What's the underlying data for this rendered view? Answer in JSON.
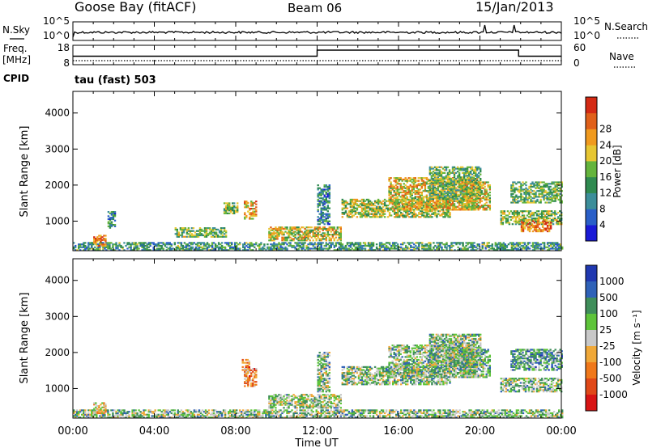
{
  "header": {
    "station": "Goose Bay (fitACF)",
    "beam": "Beam 06",
    "date": "15/Jan/2013"
  },
  "top_panel": {
    "nsky_label": "N.Sky",
    "nsearch_label": "N.Search",
    "left_ticks": [
      "10^5",
      "10^0"
    ],
    "right_ticks": [
      "10^5",
      "10^0"
    ]
  },
  "freq_panel": {
    "freq_label": "Freq.",
    "freq_unit": "[MHz]",
    "nave_label": "Nave",
    "left_ticks": [
      "18",
      "8"
    ],
    "right_ticks": [
      "60",
      "0"
    ],
    "cpid_label": "CPID",
    "cpid_value": "tau (fast) 503"
  },
  "chart_data": [
    {
      "type": "heatmap",
      "panel": "power",
      "ylabel": "Slant Range [km]",
      "xlabel": "",
      "yticks": [
        "1000",
        "2000",
        "3000",
        "4000"
      ],
      "ylim": [
        180,
        4600
      ],
      "xlim": [
        0,
        24
      ],
      "colorbar": {
        "label": "Power [dB]",
        "ticks": [
          "4",
          "8",
          "12",
          "16",
          "20",
          "24",
          "28"
        ],
        "colors": [
          "#1a1ad6",
          "#2a5fc8",
          "#3c8e9a",
          "#2f8a50",
          "#64b43c",
          "#e7c632",
          "#f09a1e",
          "#e0601a",
          "#d42a14"
        ]
      },
      "regions": [
        {
          "t0": 0.0,
          "t1": 24.0,
          "r0": 180,
          "r1": 420,
          "level": 0.35
        },
        {
          "t0": 1.0,
          "t1": 1.6,
          "r0": 300,
          "r1": 600,
          "level": 0.8
        },
        {
          "t0": 1.7,
          "t1": 2.1,
          "r0": 800,
          "r1": 1250,
          "level": 0.3
        },
        {
          "t0": 5.0,
          "t1": 7.5,
          "r0": 550,
          "r1": 800,
          "level": 0.45
        },
        {
          "t0": 7.4,
          "t1": 8.1,
          "r0": 1200,
          "r1": 1500,
          "level": 0.5
        },
        {
          "t0": 8.4,
          "t1": 9.0,
          "r0": 1050,
          "r1": 1550,
          "level": 0.7
        },
        {
          "t0": 9.6,
          "t1": 13.2,
          "r0": 450,
          "r1": 850,
          "level": 0.6
        },
        {
          "t0": 12.0,
          "t1": 12.6,
          "r0": 900,
          "r1": 2000,
          "level": 0.3
        },
        {
          "t0": 13.2,
          "t1": 18.5,
          "r0": 1100,
          "r1": 1600,
          "level": 0.55
        },
        {
          "t0": 15.5,
          "t1": 19.8,
          "r0": 1300,
          "r1": 2200,
          "level": 0.65
        },
        {
          "t0": 17.5,
          "t1": 20.0,
          "r0": 1600,
          "r1": 2500,
          "level": 0.45
        },
        {
          "t0": 19.0,
          "t1": 20.5,
          "r0": 1300,
          "r1": 2100,
          "level": 0.6
        },
        {
          "t0": 21.0,
          "t1": 24.0,
          "r0": 900,
          "r1": 1300,
          "level": 0.5
        },
        {
          "t0": 22.0,
          "t1": 23.5,
          "r0": 700,
          "r1": 1000,
          "level": 0.8
        },
        {
          "t0": 21.5,
          "t1": 24.0,
          "r0": 1500,
          "r1": 2100,
          "level": 0.45
        }
      ]
    },
    {
      "type": "heatmap",
      "panel": "velocity",
      "ylabel": "Slant Range [km]",
      "xlabel": "Time UT",
      "yticks": [
        "1000",
        "2000",
        "3000",
        "4000"
      ],
      "xticks": [
        "00:00",
        "04:00",
        "08:00",
        "12:00",
        "16:00",
        "20:00",
        "00:00"
      ],
      "ylim": [
        180,
        4600
      ],
      "xlim": [
        0,
        24
      ],
      "colorbar": {
        "label": "Velocity [m s⁻¹]",
        "ticks": [
          "1000",
          "500",
          "100",
          "25",
          "-25",
          "-100",
          "-500",
          "-1000"
        ],
        "colors": [
          "#2038b0",
          "#2f62b8",
          "#3f8e5a",
          "#5ec43a",
          "#c8c8c8",
          "#f0a838",
          "#f0781a",
          "#e04818",
          "#d81414"
        ]
      },
      "regions": [
        {
          "t0": 0.0,
          "t1": 24.0,
          "r0": 180,
          "r1": 420,
          "level": 0.4
        },
        {
          "t0": 1.0,
          "t1": 1.6,
          "r0": 300,
          "r1": 600,
          "level": 0.55
        },
        {
          "t0": 8.4,
          "t1": 9.0,
          "r0": 1050,
          "r1": 1550,
          "level": 0.7
        },
        {
          "t0": 8.3,
          "t1": 8.7,
          "r0": 1500,
          "r1": 1800,
          "level": 0.7
        },
        {
          "t0": 9.6,
          "t1": 13.2,
          "r0": 450,
          "r1": 850,
          "level": 0.42
        },
        {
          "t0": 12.0,
          "t1": 12.6,
          "r0": 900,
          "r1": 2000,
          "level": 0.4
        },
        {
          "t0": 13.2,
          "t1": 18.5,
          "r0": 1100,
          "r1": 1600,
          "level": 0.4
        },
        {
          "t0": 15.5,
          "t1": 19.8,
          "r0": 1300,
          "r1": 2200,
          "level": 0.4
        },
        {
          "t0": 17.5,
          "t1": 20.0,
          "r0": 1600,
          "r1": 2500,
          "level": 0.4
        },
        {
          "t0": 19.0,
          "t1": 20.5,
          "r0": 1300,
          "r1": 2100,
          "level": 0.38
        },
        {
          "t0": 21.0,
          "t1": 24.0,
          "r0": 900,
          "r1": 1300,
          "level": 0.4
        },
        {
          "t0": 21.5,
          "t1": 24.0,
          "r0": 1500,
          "r1": 2100,
          "level": 0.3
        }
      ]
    }
  ]
}
